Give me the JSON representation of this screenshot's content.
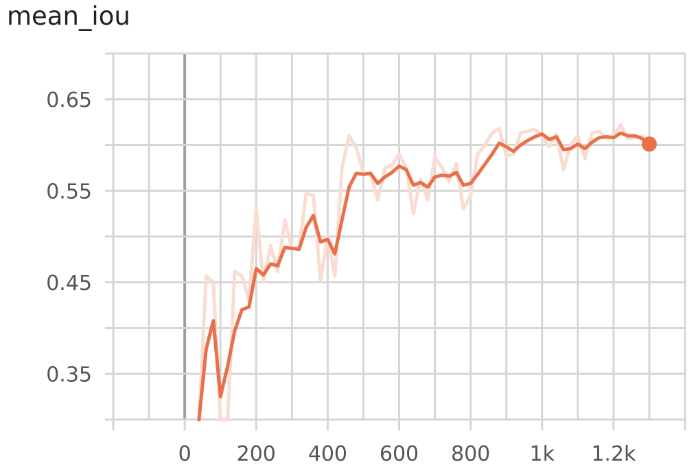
{
  "chart_data": {
    "type": "line",
    "title": "mean_iou",
    "xlim": [
      -200,
      1400
    ],
    "ylim": [
      0.3,
      0.7
    ],
    "x_ticks": [
      0,
      200,
      400,
      600,
      800,
      1000,
      1200
    ],
    "x_tick_labels": [
      "0",
      "200",
      "400",
      "600",
      "800",
      "1k",
      "1.2k"
    ],
    "y_ticks": [
      0.35,
      0.45,
      0.55,
      0.65
    ],
    "y_tick_labels": [
      "0.35",
      "0.45",
      "0.55",
      "0.65"
    ],
    "grid": true,
    "series": [
      {
        "role": "raw",
        "color": "#f9ddd2",
        "x": [
          40,
          60,
          80,
          100,
          120,
          140,
          160,
          180,
          200,
          220,
          240,
          260,
          280,
          300,
          320,
          340,
          360,
          380,
          400,
          420,
          440,
          460,
          480,
          500,
          520,
          540,
          560,
          580,
          600,
          620,
          640,
          660,
          680,
          700,
          720,
          740,
          760,
          780,
          800,
          820,
          840,
          860,
          880,
          900,
          920,
          940,
          960,
          980,
          1000,
          1020,
          1040,
          1060,
          1080,
          1100,
          1120,
          1140,
          1160,
          1180,
          1200,
          1220,
          1240,
          1260,
          1280,
          1300
        ],
        "y": [
          0.3,
          0.457,
          0.45,
          0.3,
          0.3,
          0.462,
          0.457,
          0.43,
          0.53,
          0.45,
          0.49,
          0.462,
          0.518,
          0.487,
          0.487,
          0.547,
          0.545,
          0.452,
          0.5,
          0.457,
          0.575,
          0.61,
          0.597,
          0.57,
          0.568,
          0.54,
          0.575,
          0.578,
          0.59,
          0.575,
          0.525,
          0.563,
          0.54,
          0.587,
          0.575,
          0.56,
          0.58,
          0.53,
          0.545,
          0.59,
          0.6,
          0.613,
          0.618,
          0.588,
          0.59,
          0.613,
          0.615,
          0.617,
          0.61,
          0.598,
          0.612,
          0.573,
          0.6,
          0.61,
          0.585,
          0.613,
          0.615,
          0.607,
          0.61,
          0.622,
          0.607,
          0.608,
          0.61,
          0.601
        ]
      },
      {
        "role": "smoothed",
        "color": "#e8704a",
        "x": [
          40,
          60,
          80,
          100,
          120,
          140,
          160,
          180,
          200,
          220,
          240,
          260,
          280,
          300,
          320,
          340,
          360,
          380,
          400,
          420,
          440,
          460,
          480,
          500,
          520,
          540,
          560,
          580,
          600,
          620,
          640,
          660,
          680,
          700,
          720,
          740,
          760,
          780,
          800,
          820,
          840,
          860,
          880,
          900,
          920,
          940,
          960,
          980,
          1000,
          1020,
          1040,
          1060,
          1080,
          1100,
          1120,
          1140,
          1160,
          1180,
          1200,
          1220,
          1240,
          1260,
          1280,
          1300
        ],
        "y": [
          0.3,
          0.377,
          0.408,
          0.325,
          0.358,
          0.397,
          0.42,
          0.423,
          0.465,
          0.458,
          0.47,
          0.468,
          0.488,
          0.487,
          0.486,
          0.51,
          0.523,
          0.494,
          0.497,
          0.481,
          0.518,
          0.554,
          0.569,
          0.568,
          0.569,
          0.558,
          0.565,
          0.57,
          0.577,
          0.573,
          0.556,
          0.559,
          0.554,
          0.565,
          0.567,
          0.566,
          0.57,
          0.556,
          0.558,
          0.568,
          0.579,
          0.59,
          0.602,
          0.598,
          0.593,
          0.6,
          0.605,
          0.609,
          0.612,
          0.606,
          0.609,
          0.595,
          0.596,
          0.601,
          0.596,
          0.603,
          0.608,
          0.609,
          0.608,
          0.613,
          0.61,
          0.61,
          0.607,
          0.601
        ]
      }
    ]
  }
}
